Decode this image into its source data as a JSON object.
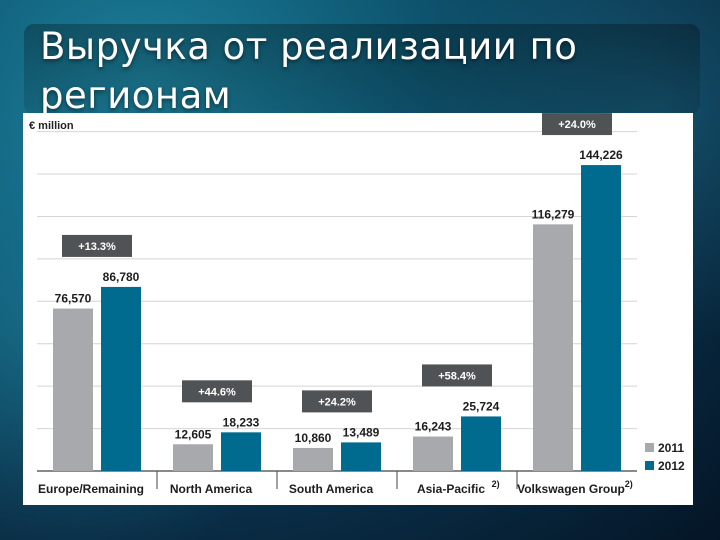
{
  "slide": {
    "title": "Выручка от реализации по регионам"
  },
  "chart_data": {
    "type": "bar",
    "unit_label": "€ million",
    "categories": [
      {
        "name": "Europe/Remaining",
        "sup": ""
      },
      {
        "name": "North America",
        "sup": ""
      },
      {
        "name": "South America",
        "sup": ""
      },
      {
        "name": "Asia-Pacific",
        "sup": "2)"
      },
      {
        "name": "Volkswagen Group",
        "sup": "2)"
      }
    ],
    "series": [
      {
        "name": "2011",
        "color": "#a7a9ac",
        "values": [
          76570,
          12605,
          10860,
          16243,
          116279
        ],
        "labels": [
          "76,570",
          "12,605",
          "10,860",
          "16,243",
          "116,279"
        ]
      },
      {
        "name": "2012",
        "color": "#006b8f",
        "values": [
          86780,
          18233,
          13489,
          25724,
          144226
        ],
        "labels": [
          "86,780",
          "18,233",
          "13,489",
          "25,724",
          "144,226"
        ]
      }
    ],
    "growth": [
      "+13.3%",
      "+44.6%",
      "+24.2%",
      "+58.4%",
      "+24.0%"
    ],
    "growth_box_color": "#505355",
    "ylim": [
      0,
      165000
    ],
    "grid": true,
    "legend": "bottom-right"
  }
}
